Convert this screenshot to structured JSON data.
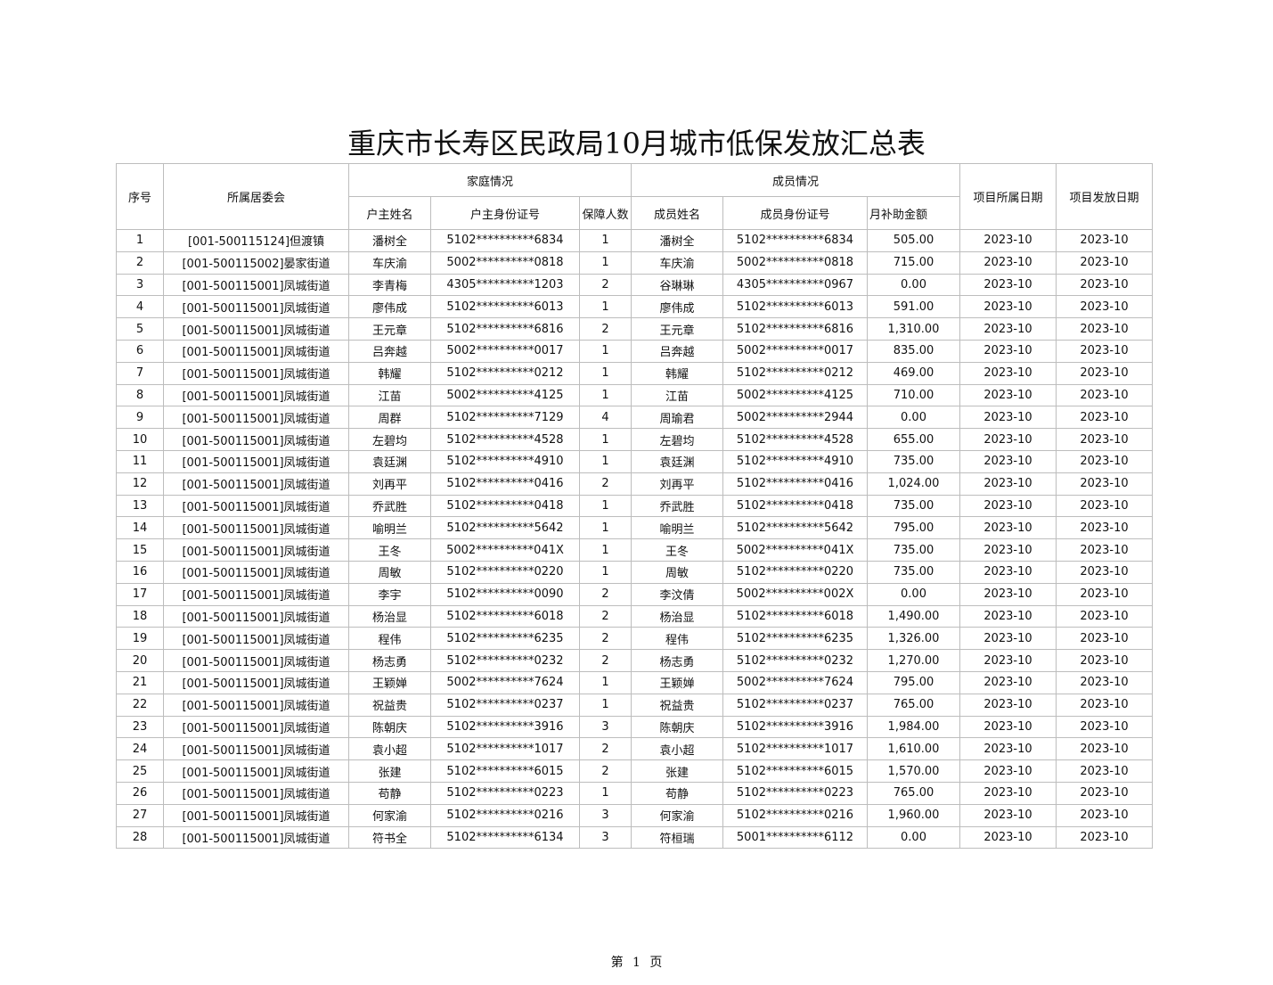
{
  "title": "重庆市长寿区民政局10月城市低保发放汇总表",
  "headers": {
    "seq": "序号",
    "committee": "所属居委会",
    "family_group": "家庭情况",
    "head_name": "户主姓名",
    "head_id": "户主身份证号",
    "count": "保障人数",
    "member_group": "成员情况",
    "member_name": "成员姓名",
    "member_id": "成员身份证号",
    "amount": "月补助金额",
    "belong_date": "项目所属日期",
    "issue_date": "项目发放日期"
  },
  "rows": [
    [
      "1",
      "[001-500115124]但渡镇",
      "潘树全",
      "5102**********6834",
      "1",
      "潘树全",
      "5102**********6834",
      "505.00",
      "2023-10",
      "2023-10"
    ],
    [
      "2",
      "[001-500115002]晏家街道",
      "车庆渝",
      "5002**********0818",
      "1",
      "车庆渝",
      "5002**********0818",
      "715.00",
      "2023-10",
      "2023-10"
    ],
    [
      "3",
      "[001-500115001]凤城街道",
      "李青梅",
      "4305**********1203",
      "2",
      "谷琳琳",
      "4305**********0967",
      "0.00",
      "2023-10",
      "2023-10"
    ],
    [
      "4",
      "[001-500115001]凤城街道",
      "廖伟成",
      "5102**********6013",
      "1",
      "廖伟成",
      "5102**********6013",
      "591.00",
      "2023-10",
      "2023-10"
    ],
    [
      "5",
      "[001-500115001]凤城街道",
      "王元章",
      "5102**********6816",
      "2",
      "王元章",
      "5102**********6816",
      "1,310.00",
      "2023-10",
      "2023-10"
    ],
    [
      "6",
      "[001-500115001]凤城街道",
      "吕奔越",
      "5002**********0017",
      "1",
      "吕奔越",
      "5002**********0017",
      "835.00",
      "2023-10",
      "2023-10"
    ],
    [
      "7",
      "[001-500115001]凤城街道",
      "韩耀",
      "5102**********0212",
      "1",
      "韩耀",
      "5102**********0212",
      "469.00",
      "2023-10",
      "2023-10"
    ],
    [
      "8",
      "[001-500115001]凤城街道",
      "江苗",
      "5002**********4125",
      "1",
      "江苗",
      "5002**********4125",
      "710.00",
      "2023-10",
      "2023-10"
    ],
    [
      "9",
      "[001-500115001]凤城街道",
      "周群",
      "5102**********7129",
      "4",
      "周瑜君",
      "5002**********2944",
      "0.00",
      "2023-10",
      "2023-10"
    ],
    [
      "10",
      "[001-500115001]凤城街道",
      "左碧均",
      "5102**********4528",
      "1",
      "左碧均",
      "5102**********4528",
      "655.00",
      "2023-10",
      "2023-10"
    ],
    [
      "11",
      "[001-500115001]凤城街道",
      "袁廷渊",
      "5102**********4910",
      "1",
      "袁廷渊",
      "5102**********4910",
      "735.00",
      "2023-10",
      "2023-10"
    ],
    [
      "12",
      "[001-500115001]凤城街道",
      "刘再平",
      "5102**********0416",
      "2",
      "刘再平",
      "5102**********0416",
      "1,024.00",
      "2023-10",
      "2023-10"
    ],
    [
      "13",
      "[001-500115001]凤城街道",
      "乔武胜",
      "5102**********0418",
      "1",
      "乔武胜",
      "5102**********0418",
      "735.00",
      "2023-10",
      "2023-10"
    ],
    [
      "14",
      "[001-500115001]凤城街道",
      "喻明兰",
      "5102**********5642",
      "1",
      "喻明兰",
      "5102**********5642",
      "795.00",
      "2023-10",
      "2023-10"
    ],
    [
      "15",
      "[001-500115001]凤城街道",
      "王冬",
      "5002**********041X",
      "1",
      "王冬",
      "5002**********041X",
      "735.00",
      "2023-10",
      "2023-10"
    ],
    [
      "16",
      "[001-500115001]凤城街道",
      "周敏",
      "5102**********0220",
      "1",
      "周敏",
      "5102**********0220",
      "735.00",
      "2023-10",
      "2023-10"
    ],
    [
      "17",
      "[001-500115001]凤城街道",
      "李宇",
      "5102**********0090",
      "2",
      "李汶倩",
      "5002**********002X",
      "0.00",
      "2023-10",
      "2023-10"
    ],
    [
      "18",
      "[001-500115001]凤城街道",
      "杨治显",
      "5102**********6018",
      "2",
      "杨治显",
      "5102**********6018",
      "1,490.00",
      "2023-10",
      "2023-10"
    ],
    [
      "19",
      "[001-500115001]凤城街道",
      "程伟",
      "5102**********6235",
      "2",
      "程伟",
      "5102**********6235",
      "1,326.00",
      "2023-10",
      "2023-10"
    ],
    [
      "20",
      "[001-500115001]凤城街道",
      "杨志勇",
      "5102**********0232",
      "2",
      "杨志勇",
      "5102**********0232",
      "1,270.00",
      "2023-10",
      "2023-10"
    ],
    [
      "21",
      "[001-500115001]凤城街道",
      "王颖婵",
      "5002**********7624",
      "1",
      "王颖婵",
      "5002**********7624",
      "795.00",
      "2023-10",
      "2023-10"
    ],
    [
      "22",
      "[001-500115001]凤城街道",
      "祝益贵",
      "5102**********0237",
      "1",
      "祝益贵",
      "5102**********0237",
      "765.00",
      "2023-10",
      "2023-10"
    ],
    [
      "23",
      "[001-500115001]凤城街道",
      "陈朝庆",
      "5102**********3916",
      "3",
      "陈朝庆",
      "5102**********3916",
      "1,984.00",
      "2023-10",
      "2023-10"
    ],
    [
      "24",
      "[001-500115001]凤城街道",
      "袁小超",
      "5102**********1017",
      "2",
      "袁小超",
      "5102**********1017",
      "1,610.00",
      "2023-10",
      "2023-10"
    ],
    [
      "25",
      "[001-500115001]凤城街道",
      "张建",
      "5102**********6015",
      "2",
      "张建",
      "5102**********6015",
      "1,570.00",
      "2023-10",
      "2023-10"
    ],
    [
      "26",
      "[001-500115001]凤城街道",
      "苟静",
      "5102**********0223",
      "1",
      "苟静",
      "5102**********0223",
      "765.00",
      "2023-10",
      "2023-10"
    ],
    [
      "27",
      "[001-500115001]凤城街道",
      "何家渝",
      "5102**********0216",
      "3",
      "何家渝",
      "5102**********0216",
      "1,960.00",
      "2023-10",
      "2023-10"
    ],
    [
      "28",
      "[001-500115001]凤城街道",
      "符书全",
      "5102**********6134",
      "3",
      "符桓瑞",
      "5001**********6112",
      "0.00",
      "2023-10",
      "2023-10"
    ]
  ],
  "footer": "第 1 页"
}
